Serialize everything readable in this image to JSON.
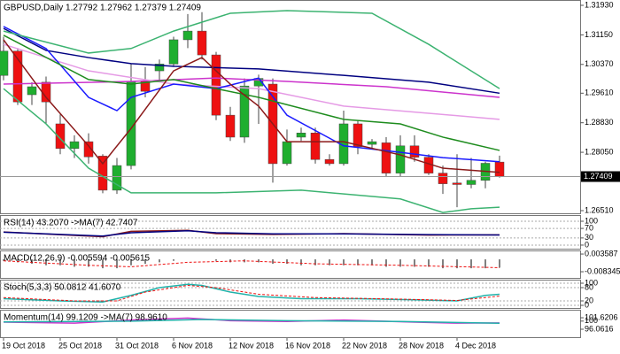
{
  "chart_data": [
    {
      "type": "candlestick",
      "title": "GBPUSD,Daily  1.27792 1.27962 1.27379 1.27409",
      "categories": [
        "19 Oct 2018",
        null,
        null,
        null,
        "25 Oct 2018",
        null,
        null,
        null,
        "31 Oct 2018",
        null,
        null,
        null,
        "6 Nov 2018",
        null,
        null,
        null,
        "12 Nov 2018",
        null,
        null,
        null,
        "16 Nov 2018",
        null,
        null,
        null,
        "22 Nov 2018",
        null,
        null,
        null,
        "28 Nov 2018",
        null,
        null,
        null,
        "4 Dec 2018",
        null,
        null,
        null
      ],
      "open": [
        1.3008,
        1.3072,
        1.2957,
        1.299,
        1.288,
        1.2815,
        1.2833,
        1.2795,
        1.2705,
        1.277,
        1.2992,
        1.302,
        1.3038,
        1.3102,
        1.3125,
        1.3062,
        1.2903,
        1.2845,
        1.298,
        1.2985,
        1.2775,
        1.2845,
        1.2856,
        1.2786,
        1.2775,
        1.288,
        1.2826,
        1.283,
        1.275,
        1.2822,
        1.2792,
        1.275,
        1.2724,
        1.272,
        1.2731,
        1.27792
      ],
      "high": [
        1.311,
        1.308,
        1.299,
        1.3005,
        1.2905,
        1.285,
        1.2855,
        1.28,
        1.279,
        1.304,
        1.303,
        1.305,
        1.311,
        1.317,
        1.3175,
        1.307,
        1.2925,
        1.3,
        1.301,
        1.3,
        1.2865,
        1.287,
        1.287,
        1.28,
        1.2915,
        1.289,
        1.284,
        1.2845,
        1.285,
        1.285,
        1.28,
        1.277,
        1.28,
        1.279,
        1.278,
        1.27962
      ],
      "low": [
        1.2995,
        1.293,
        1.293,
        1.288,
        1.28,
        1.279,
        1.2775,
        1.2697,
        1.2695,
        1.276,
        1.295,
        1.299,
        1.303,
        1.308,
        1.305,
        1.289,
        1.2835,
        1.283,
        1.288,
        1.2725,
        1.277,
        1.2835,
        1.2775,
        1.277,
        1.277,
        1.28,
        1.2815,
        1.274,
        1.274,
        1.278,
        1.2745,
        1.2695,
        1.266,
        1.271,
        1.271,
        1.27379
      ],
      "close": [
        1.3072,
        1.2938,
        1.2978,
        1.2938,
        1.2815,
        1.2833,
        1.2793,
        1.2705,
        1.277,
        1.2992,
        1.2966,
        1.3038,
        1.3102,
        1.3125,
        1.3062,
        1.2903,
        1.2845,
        1.298,
        1.3,
        1.2775,
        1.2833,
        1.2856,
        1.2786,
        1.2775,
        1.288,
        1.282,
        1.2833,
        1.275,
        1.2822,
        1.2792,
        1.275,
        1.2722,
        1.272,
        1.2731,
        1.2776,
        1.27409
      ],
      "up_color": "#1fae2f",
      "down_color": "#ee1111",
      "last_price": 1.27409,
      "series": [
        {
          "color": "#000080",
          "x": [
            0,
            3,
            6,
            9,
            12,
            18,
            24,
            30,
            35
          ],
          "values": [
            1.3132,
            1.3074,
            1.3055,
            1.3039,
            1.3032,
            1.3025,
            1.3008,
            1.299,
            1.2961
          ]
        },
        {
          "color": "#cc33cc",
          "x": [
            0,
            9,
            15,
            20,
            27,
            35
          ],
          "values": [
            1.2985,
            1.2992,
            1.3001,
            1.2992,
            1.2978,
            1.295
          ]
        },
        {
          "color": "#e59ae5",
          "x": [
            0,
            6,
            12,
            18,
            24,
            30,
            35
          ],
          "values": [
            1.309,
            1.302,
            1.2985,
            1.2973,
            1.2927,
            1.2908,
            1.2892
          ]
        },
        {
          "color": "#1a1aff",
          "x": [
            0,
            3,
            6,
            8,
            9,
            12,
            15,
            18,
            20,
            24,
            28,
            31,
            35
          ],
          "values": [
            1.3137,
            1.3079,
            1.295,
            1.2915,
            1.295,
            1.2985,
            1.2973,
            1.3001,
            1.2903,
            1.2822,
            1.2805,
            1.2791,
            1.278
          ]
        },
        {
          "color": "#1e8c1e",
          "x": [
            0,
            6,
            9,
            12,
            15,
            18,
            24,
            28,
            31,
            35
          ],
          "values": [
            1.3114,
            1.2997,
            1.2985,
            1.2997,
            1.2973,
            1.295,
            1.2892,
            1.288,
            1.2845,
            1.281
          ]
        },
        {
          "color": "#8b1a1a",
          "x": [
            0,
            3,
            6,
            7,
            9,
            12,
            14,
            16,
            18,
            20,
            24,
            28,
            31,
            35
          ],
          "values": [
            1.3102,
            1.295,
            1.2822,
            1.2775,
            1.2868,
            1.302,
            1.3055,
            1.2985,
            1.2927,
            1.2833,
            1.2833,
            1.2798,
            1.2763,
            1.2752
          ]
        },
        {
          "color": "#3cb371",
          "x": [
            0,
            6,
            9,
            12,
            16,
            20,
            26,
            30,
            35
          ],
          "values": [
            1.3125,
            1.3067,
            1.3079,
            1.3125,
            1.3172,
            1.3179,
            1.3172,
            1.309,
            1.2973
          ]
        },
        {
          "color": "#3cb371",
          "x": [
            0,
            3,
            6,
            9,
            15,
            21,
            28,
            31,
            33,
            35
          ],
          "values": [
            1.2973,
            1.288,
            1.2763,
            1.2698,
            1.2698,
            1.2705,
            1.2682,
            1.2646,
            1.2656,
            1.266
          ]
        }
      ],
      "ylim": [
        1.2644,
        1.3207
      ],
      "grid": false,
      "yticks": [
        {
          "value": 1.3193,
          "label": "1.31930"
        },
        {
          "value": 1.3115,
          "label": "1.31150"
        },
        {
          "value": 1.3037,
          "label": "1.30370"
        },
        {
          "value": 1.2961,
          "label": "1.29610"
        },
        {
          "value": 1.2883,
          "label": "1.28830"
        },
        {
          "value": 1.2805,
          "label": "1.28050"
        },
        {
          "value": 1.2651,
          "label": "1.26510"
        }
      ]
    },
    {
      "type": "line",
      "title": "RSI(14) 43.2070 ->MA(7) 42.7407",
      "ylim": [
        -15,
        126
      ],
      "grid": true,
      "yticks": [
        100,
        70,
        30,
        0
      ],
      "series": [
        {
          "color": "#8b1a1a",
          "x": [
            0,
            7,
            9,
            13,
            15,
            19,
            24,
            30,
            35
          ],
          "values": [
            55,
            35,
            58,
            62,
            48,
            45,
            48,
            42,
            43.207
          ]
        },
        {
          "color": "#000080",
          "x": [
            0,
            7,
            9,
            13,
            15,
            19,
            24,
            30,
            35
          ],
          "values": [
            54,
            38,
            52,
            60,
            52,
            47,
            47,
            44,
            42.7407
          ]
        }
      ]
    },
    {
      "type": "bar",
      "title": "MACD(12,26,9) -0.005594 -0.005615",
      "ylim": [
        -0.0125,
        0.006
      ],
      "grid": false,
      "yticks": [
        0.003587,
        -0.008345
      ],
      "color": "#808080",
      "values": [
        -0.001,
        -0.002,
        -0.003,
        -0.004,
        -0.004,
        -0.005,
        -0.005,
        -0.006,
        -0.006,
        -0.004,
        -0.003,
        -0.002,
        -0.001,
        0,
        0,
        -0.001,
        -0.002,
        -0.002,
        -0.002,
        -0.003,
        -0.003,
        -0.004,
        -0.004,
        -0.004,
        -0.004,
        -0.004,
        -0.004,
        -0.005,
        -0.005,
        -0.005,
        -0.005,
        -0.006,
        -0.006,
        -0.006,
        -0.006,
        -0.005594
      ],
      "series": [
        {
          "color": "#ee1111",
          "dashed": true,
          "x": [
            0,
            6,
            9,
            13,
            17,
            22,
            28,
            35
          ],
          "values": [
            -0.001,
            -0.004,
            -0.005,
            -0.002,
            -0.001,
            -0.003,
            -0.004,
            -0.005615
          ]
        }
      ]
    },
    {
      "type": "line",
      "title": "Stoch(5,3,3) 50.0812 41.6070",
      "ylim": [
        -12,
        116
      ],
      "grid": true,
      "yticks": [
        100,
        80,
        20,
        0
      ],
      "series": [
        {
          "color": "#20b2aa",
          "x": [
            0,
            4,
            7,
            9,
            11,
            13,
            14,
            16,
            18,
            21,
            25,
            29,
            32,
            34,
            35
          ],
          "values": [
            30,
            20,
            15,
            45,
            80,
            95,
            90,
            60,
            40,
            30,
            30,
            25,
            20,
            45,
            50.0812
          ]
        },
        {
          "color": "#ee1111",
          "dashed": true,
          "x": [
            0,
            5,
            8,
            10,
            13,
            15,
            18,
            22,
            28,
            32,
            35
          ],
          "values": [
            35,
            20,
            20,
            60,
            90,
            80,
            50,
            35,
            28,
            22,
            41.607
          ]
        }
      ]
    },
    {
      "type": "line",
      "title": "Momentum(14) 99.1209 ->MA(7) 98.9610",
      "ylim": [
        92.2,
        105.5
      ],
      "grid": false,
      "yticks": [
        101.6206,
        100,
        96.0616
      ],
      "series": [
        {
          "color": "#cc33cc",
          "x": [
            0,
            5,
            9,
            13,
            16,
            20,
            24,
            29,
            32,
            35
          ],
          "values": [
            99.5,
            99,
            100.5,
            101.5,
            100.2,
            99.8,
            100.5,
            99.5,
            99,
            99.1209
          ]
        },
        {
          "color": "#20b2aa",
          "x": [
            0,
            9,
            14,
            20,
            28,
            35
          ],
          "values": [
            99.6,
            100,
            100.8,
            100.2,
            99.8,
            98.961
          ]
        }
      ]
    }
  ]
}
